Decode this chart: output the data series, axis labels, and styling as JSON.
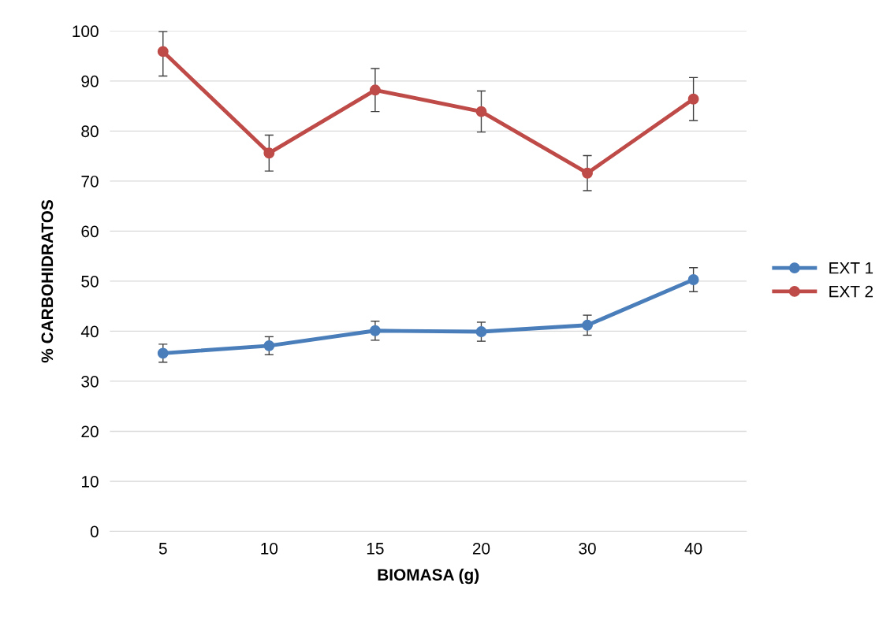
{
  "chart_data": {
    "type": "line",
    "xlabel": "BIOMASA (g)",
    "ylabel": "% CARBOHIDRATOS",
    "categories": [
      "5",
      "10",
      "15",
      "20",
      "30",
      "40"
    ],
    "series": [
      {
        "name": "EXT 1",
        "color": "#4a7ebb",
        "values": [
          35.6,
          37.1,
          40.1,
          39.9,
          41.2,
          50.3
        ],
        "errors": [
          1.8,
          1.8,
          1.9,
          1.9,
          2.0,
          2.4
        ]
      },
      {
        "name": "EXT 2",
        "color": "#be4b48",
        "values": [
          95.9,
          75.6,
          88.2,
          83.9,
          71.6,
          86.4
        ],
        "errors": [
          [
            91.0,
            99.9
          ],
          3.6,
          4.3,
          4.1,
          3.5,
          4.3
        ]
      }
    ],
    "ylim": [
      0,
      100
    ],
    "yticks": [
      0,
      10,
      20,
      30,
      40,
      50,
      60,
      70,
      80,
      90,
      100
    ],
    "grid": "y",
    "legend": "right",
    "marker": "circle",
    "line_style": "solid"
  }
}
